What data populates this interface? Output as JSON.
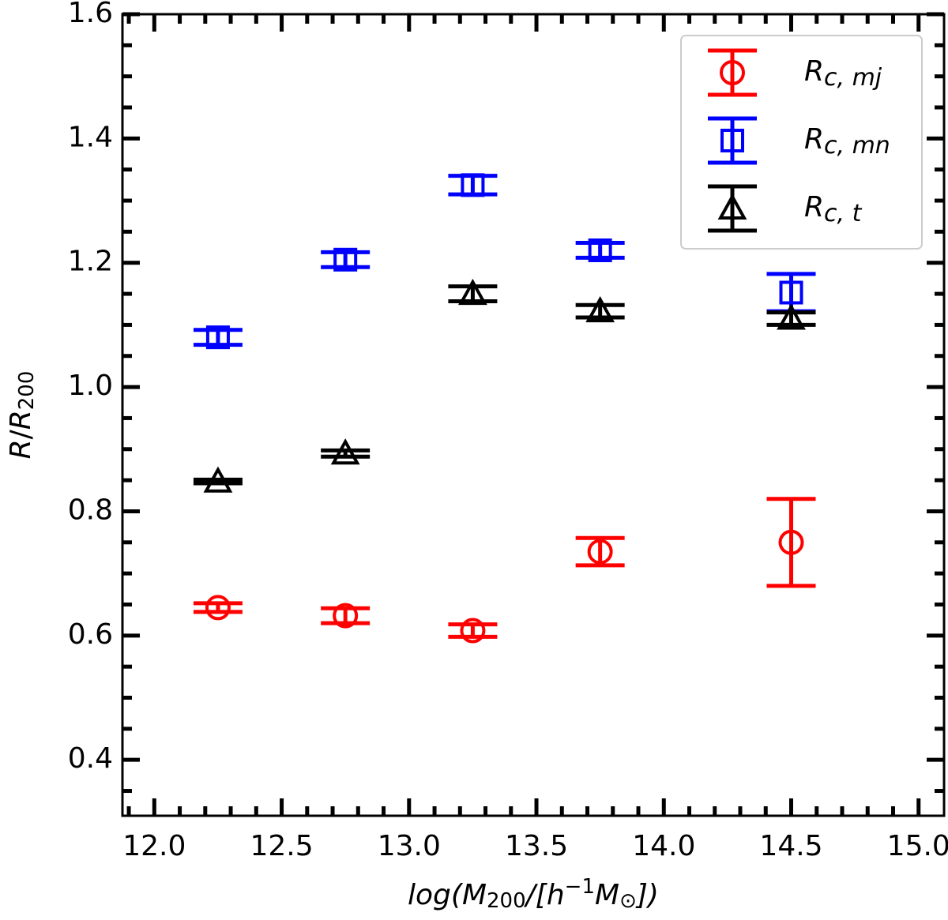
{
  "chart_data": {
    "type": "errorbar",
    "xlabel": [
      {
        "text": "log(M",
        "italic": true
      },
      {
        "text": "200",
        "sub": true
      },
      {
        "text": "/[",
        "italic": true
      },
      {
        "text": "h",
        "italic": true
      },
      {
        "text": "−1",
        "sup": true
      },
      {
        "text": "M",
        "italic": true
      },
      {
        "text": "⊙",
        "sub": true
      },
      {
        "text": "])",
        "italic": true
      }
    ],
    "ylabel": [
      {
        "text": "R",
        "italic": true
      },
      {
        "text": "/"
      },
      {
        "text": "R",
        "italic": true
      },
      {
        "text": "200",
        "sub": true
      }
    ],
    "x": [
      12.25,
      12.75,
      13.25,
      13.75,
      14.5
    ],
    "series": [
      {
        "name": "Rc, mj",
        "color": "#ff0000",
        "marker": "circle",
        "values": [
          0.645,
          0.632,
          0.608,
          0.735,
          0.75
        ],
        "errors": [
          0.007,
          0.012,
          0.01,
          0.022,
          0.07
        ]
      },
      {
        "name": "Rc, mn",
        "color": "#0000ff",
        "marker": "square",
        "values": [
          1.08,
          1.205,
          1.325,
          1.22,
          1.152
        ],
        "errors": [
          0.012,
          0.012,
          0.015,
          0.012,
          0.03
        ]
      },
      {
        "name": "Rc, t",
        "color": "#000000",
        "marker": "triangle",
        "values": [
          0.848,
          0.893,
          1.15,
          1.122,
          1.11
        ],
        "errors": [
          0.003,
          0.005,
          0.012,
          0.01,
          0.01
        ]
      }
    ],
    "xlim": [
      11.875,
      15.1
    ],
    "ylim": [
      0.31,
      1.6
    ],
    "xticks": [
      {
        "value": 12,
        "label": "12.0"
      },
      12.5,
      {
        "value": 13,
        "label": "13.0"
      },
      13.5,
      {
        "value": 14,
        "label": "14.0"
      },
      14.5,
      {
        "value": 15,
        "label": "15.0"
      }
    ],
    "yticks": [
      0.4,
      0.6,
      0.8,
      {
        "value": 1,
        "label": "1.0"
      },
      1.2,
      1.4,
      1.6
    ],
    "xminorticks": [
      11.9,
      12.1,
      12.2,
      12.3,
      12.4,
      12.6,
      12.7,
      12.8,
      12.9,
      13.1,
      13.2,
      13.3,
      13.4,
      13.6,
      13.7,
      13.8,
      13.9,
      14.1,
      14.2,
      14.3,
      14.4,
      14.6,
      14.7,
      14.8,
      14.9
    ],
    "yminorticks": [
      0.35,
      0.45,
      0.5,
      0.55,
      0.65,
      0.7,
      0.75,
      0.85,
      0.9,
      0.95,
      1.05,
      1.1,
      1.15,
      1.25,
      1.3,
      1.35,
      1.45,
      1.5,
      1.55
    ],
    "legend": "upper right"
  }
}
